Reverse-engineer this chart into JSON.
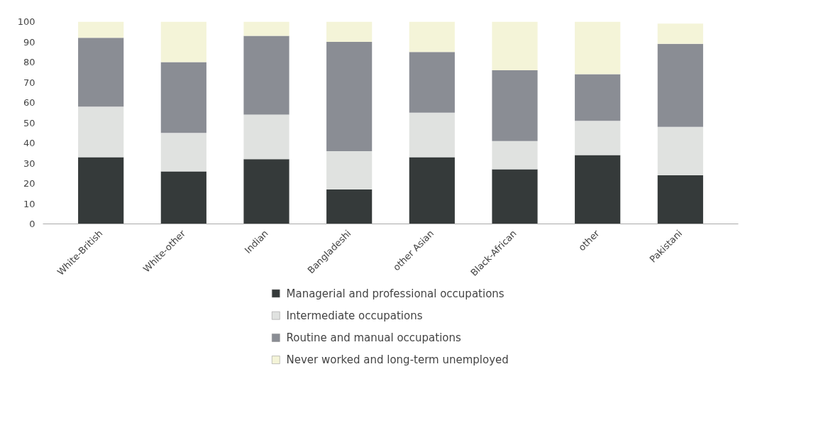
{
  "chart_data": {
    "type": "bar",
    "stacked": true,
    "categories": [
      "White-British",
      "White-other",
      "Indian",
      "Bangladeshi",
      "other Asian",
      "Black-African",
      "other",
      "Pakistani"
    ],
    "series": [
      {
        "name": "Managerial and professional occupations",
        "color": "#353a3a",
        "values": [
          33,
          26,
          32,
          17,
          33,
          27,
          34,
          24
        ]
      },
      {
        "name": "Intermediate occupations",
        "color": "#e0e2e0",
        "values": [
          25,
          19,
          22,
          19,
          22,
          14,
          17,
          24
        ]
      },
      {
        "name": "Routine and manual occupations",
        "color": "#8a8d94",
        "values": [
          34,
          35,
          39,
          54,
          30,
          35,
          23,
          41
        ]
      },
      {
        "name": "Never worked and long-term unemployed",
        "color": "#f4f4d8",
        "values": [
          8,
          20,
          7,
          10,
          15,
          24,
          26,
          10
        ]
      }
    ],
    "ylim": [
      0,
      100
    ],
    "yticks": [
      0,
      10,
      20,
      30,
      40,
      50,
      60,
      70,
      80,
      90,
      100
    ],
    "grid": false,
    "legend": "bottom",
    "marker": "square"
  }
}
